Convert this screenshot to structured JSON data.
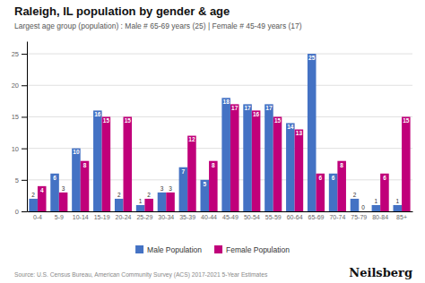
{
  "chart_data": {
    "type": "bar",
    "title": "Raleigh, IL population by gender & age",
    "subtitle": "Largest age group (population) : Male # 65-69 years (25) | Female # 45-49 years (17)",
    "categories": [
      "0-4",
      "5-9",
      "10-14",
      "15-19",
      "20-24",
      "25-29",
      "30-34",
      "35-39",
      "40-44",
      "45-49",
      "50-54",
      "55-59",
      "60-64",
      "65-69",
      "70-74",
      "75-79",
      "80-84",
      "85+"
    ],
    "series": [
      {
        "name": "Male Population",
        "color": "#4472C4",
        "values": [
          2,
          6,
          10,
          16,
          2,
          1,
          3,
          7,
          5,
          18,
          17,
          17,
          14,
          25,
          6,
          2,
          1,
          1
        ]
      },
      {
        "name": "Female Population",
        "color": "#C0007A",
        "values": [
          4,
          3,
          8,
          15,
          15,
          2,
          3,
          12,
          8,
          17,
          16,
          15,
          13,
          6,
          8,
          0,
          6,
          15
        ]
      }
    ],
    "ylim": [
      0,
      27
    ],
    "yticks": [
      0,
      5,
      10,
      15,
      20,
      25
    ],
    "grid": true,
    "legend": "bottom",
    "data_labels": true,
    "annotations": [
      "Source: U.S. Census Bureau, American Community Survey (ACS) 2017-2021 5-Year Estimates",
      "Neilsberg"
    ]
  }
}
